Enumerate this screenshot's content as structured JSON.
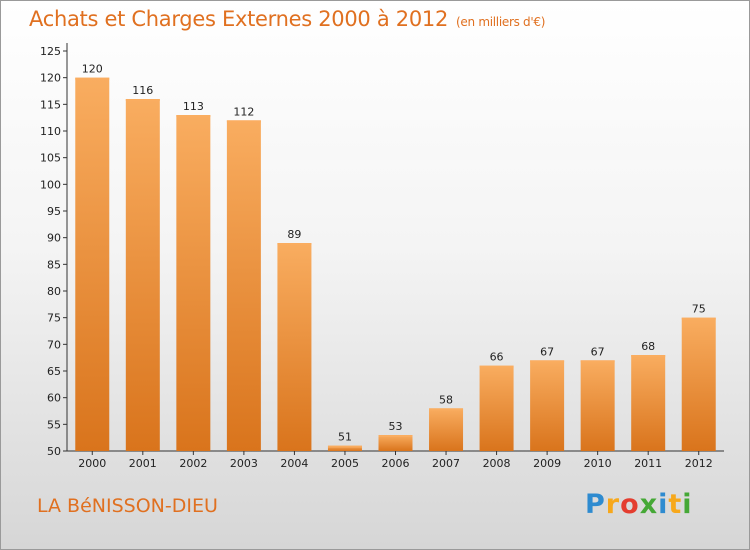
{
  "chart_data": {
    "type": "bar",
    "title": "Achats et Charges Externes 2000 à 2012",
    "subtitle": "(en milliers d'€)",
    "xlabel": "",
    "ylabel": "",
    "categories": [
      "2000",
      "2001",
      "2002",
      "2003",
      "2004",
      "2005",
      "2006",
      "2007",
      "2008",
      "2009",
      "2010",
      "2011",
      "2012"
    ],
    "values": [
      120,
      116,
      113,
      112,
      89,
      51,
      53,
      58,
      66,
      67,
      67,
      68,
      75
    ],
    "ylim": [
      50,
      125
    ],
    "yticks": [
      50,
      55,
      60,
      65,
      70,
      75,
      80,
      85,
      90,
      95,
      100,
      105,
      110,
      115,
      120,
      125
    ],
    "grid": false,
    "bar_color": "#f0922f",
    "bar_color_light": "#f9ad60",
    "bar_color_dark": "#d9741c"
  },
  "footer": {
    "place": "LA BéNISSON-DIEU",
    "logo_letters": [
      "P",
      "r",
      "o",
      "x",
      "i",
      "t",
      "i"
    ],
    "logo_colors": [
      "#2e8bd0",
      "#f7a81b",
      "#e43d2f",
      "#45a836",
      "#2e8bd0",
      "#f7a81b",
      "#45a836"
    ]
  }
}
